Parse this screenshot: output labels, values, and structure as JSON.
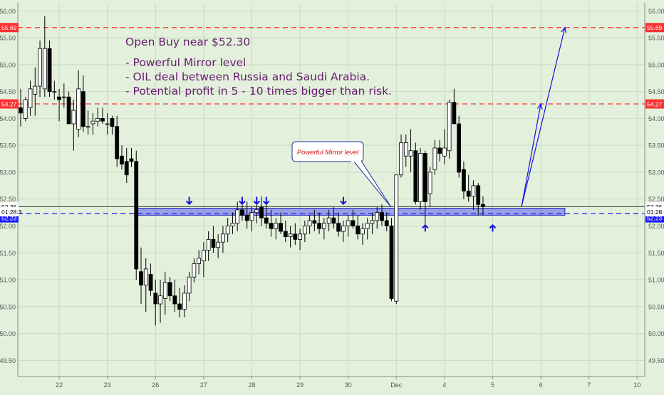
{
  "chart_data": {
    "type": "candlestick",
    "symbol": "",
    "ylim": [
      49.2,
      56.15
    ],
    "price_ticks": [
      49.5,
      50.0,
      50.5,
      51.0,
      51.5,
      52.0,
      52.5,
      53.0,
      53.5,
      54.0,
      54.5,
      55.0,
      55.5,
      56.0
    ],
    "x_tick_labels": [
      {
        "i": 8,
        "label": "22"
      },
      {
        "i": 18,
        "label": "23"
      },
      {
        "i": 28,
        "label": "26"
      },
      {
        "i": 38,
        "label": "27"
      },
      {
        "i": 48,
        "label": "28"
      },
      {
        "i": 58,
        "label": "29"
      },
      {
        "i": 68,
        "label": "30"
      },
      {
        "i": 78,
        "label": "Dec"
      },
      {
        "i": 88,
        "label": "4"
      },
      {
        "i": 98,
        "label": "5"
      },
      {
        "i": 108,
        "label": "6"
      },
      {
        "i": 118,
        "label": "7"
      },
      {
        "i": 128,
        "label": "10"
      }
    ],
    "candles": [
      {
        "i": 0,
        "o": 54.2,
        "h": 54.55,
        "l": 53.85,
        "c": 54.1
      },
      {
        "i": 1,
        "o": 54.0,
        "h": 54.4,
        "l": 53.95,
        "c": 54.35
      },
      {
        "i": 2,
        "o": 54.2,
        "h": 54.7,
        "l": 54.05,
        "c": 54.55
      },
      {
        "i": 3,
        "o": 54.45,
        "h": 54.95,
        "l": 54.05,
        "c": 54.6
      },
      {
        "i": 4,
        "o": 54.6,
        "h": 55.45,
        "l": 54.4,
        "c": 55.3
      },
      {
        "i": 5,
        "o": 54.55,
        "h": 55.9,
        "l": 54.4,
        "c": 55.3
      },
      {
        "i": 6,
        "o": 55.3,
        "h": 55.45,
        "l": 54.4,
        "c": 54.5
      },
      {
        "i": 7,
        "o": 54.5,
        "h": 54.7,
        "l": 54.35,
        "c": 54.5
      },
      {
        "i": 8,
        "o": 54.4,
        "h": 54.55,
        "l": 53.95,
        "c": 54.35
      },
      {
        "i": 9,
        "o": 54.4,
        "h": 54.65,
        "l": 54.2,
        "c": 54.4
      },
      {
        "i": 10,
        "o": 54.4,
        "h": 54.5,
        "l": 53.9,
        "c": 53.9
      },
      {
        "i": 11,
        "o": 53.9,
        "h": 54.35,
        "l": 53.4,
        "c": 54.15
      },
      {
        "i": 12,
        "o": 53.8,
        "h": 54.9,
        "l": 53.65,
        "c": 54.55
      },
      {
        "i": 13,
        "o": 54.5,
        "h": 54.8,
        "l": 53.75,
        "c": 53.85
      },
      {
        "i": 14,
        "o": 53.85,
        "h": 54.15,
        "l": 53.7,
        "c": 53.85
      },
      {
        "i": 15,
        "o": 53.9,
        "h": 54.1,
        "l": 53.7,
        "c": 53.95
      },
      {
        "i": 16,
        "o": 53.95,
        "h": 54.2,
        "l": 53.85,
        "c": 54.0
      },
      {
        "i": 17,
        "o": 54.0,
        "h": 54.2,
        "l": 53.9,
        "c": 53.95
      },
      {
        "i": 18,
        "o": 53.9,
        "h": 54.1,
        "l": 53.7,
        "c": 53.9
      },
      {
        "i": 19,
        "o": 54.0,
        "h": 54.05,
        "l": 53.7,
        "c": 53.85
      },
      {
        "i": 20,
        "o": 53.85,
        "h": 54.05,
        "l": 53.1,
        "c": 53.25
      },
      {
        "i": 21,
        "o": 53.3,
        "h": 53.5,
        "l": 53.05,
        "c": 53.15
      },
      {
        "i": 22,
        "o": 53.2,
        "h": 53.45,
        "l": 52.8,
        "c": 52.95
      },
      {
        "i": 23,
        "o": 53.25,
        "h": 53.45,
        "l": 53.1,
        "c": 53.2
      },
      {
        "i": 24,
        "o": 53.2,
        "h": 53.4,
        "l": 51.0,
        "c": 51.2
      },
      {
        "i": 25,
        "o": 51.15,
        "h": 51.6,
        "l": 50.55,
        "c": 50.9
      },
      {
        "i": 26,
        "o": 50.9,
        "h": 51.4,
        "l": 50.4,
        "c": 51.2
      },
      {
        "i": 27,
        "o": 51.1,
        "h": 51.3,
        "l": 50.7,
        "c": 50.8
      },
      {
        "i": 28,
        "o": 50.75,
        "h": 51.0,
        "l": 50.15,
        "c": 50.55
      },
      {
        "i": 29,
        "o": 50.55,
        "h": 51.0,
        "l": 50.2,
        "c": 50.7
      },
      {
        "i": 30,
        "o": 50.65,
        "h": 51.15,
        "l": 50.35,
        "c": 50.95
      },
      {
        "i": 31,
        "o": 50.95,
        "h": 51.05,
        "l": 50.6,
        "c": 50.7
      },
      {
        "i": 32,
        "o": 50.7,
        "h": 51.0,
        "l": 50.4,
        "c": 50.55
      },
      {
        "i": 33,
        "o": 50.55,
        "h": 50.85,
        "l": 50.3,
        "c": 50.45
      },
      {
        "i": 34,
        "o": 50.45,
        "h": 50.9,
        "l": 50.3,
        "c": 50.75
      },
      {
        "i": 35,
        "o": 50.75,
        "h": 51.15,
        "l": 50.6,
        "c": 51.05
      },
      {
        "i": 36,
        "o": 51.05,
        "h": 51.4,
        "l": 50.95,
        "c": 51.3
      },
      {
        "i": 37,
        "o": 51.3,
        "h": 51.55,
        "l": 51.1,
        "c": 51.4
      },
      {
        "i": 38,
        "o": 51.35,
        "h": 51.7,
        "l": 51.05,
        "c": 51.55
      },
      {
        "i": 39,
        "o": 51.55,
        "h": 51.9,
        "l": 51.35,
        "c": 51.75
      },
      {
        "i": 40,
        "o": 51.75,
        "h": 52.0,
        "l": 51.5,
        "c": 51.6
      },
      {
        "i": 41,
        "o": 51.6,
        "h": 51.85,
        "l": 51.4,
        "c": 51.7
      },
      {
        "i": 42,
        "o": 51.7,
        "h": 52.0,
        "l": 51.5,
        "c": 51.85
      },
      {
        "i": 43,
        "o": 51.85,
        "h": 52.15,
        "l": 51.7,
        "c": 52.0
      },
      {
        "i": 44,
        "o": 52.0,
        "h": 52.25,
        "l": 51.85,
        "c": 52.05
      },
      {
        "i": 45,
        "o": 52.05,
        "h": 52.45,
        "l": 51.9,
        "c": 52.3
      },
      {
        "i": 46,
        "o": 52.3,
        "h": 52.5,
        "l": 52.1,
        "c": 52.2
      },
      {
        "i": 47,
        "o": 52.2,
        "h": 52.45,
        "l": 51.95,
        "c": 52.1
      },
      {
        "i": 48,
        "o": 52.1,
        "h": 52.35,
        "l": 51.9,
        "c": 52.25
      },
      {
        "i": 49,
        "o": 52.25,
        "h": 52.5,
        "l": 52.05,
        "c": 52.3
      },
      {
        "i": 50,
        "o": 52.35,
        "h": 52.55,
        "l": 52.0,
        "c": 52.15
      },
      {
        "i": 51,
        "o": 52.15,
        "h": 52.4,
        "l": 51.95,
        "c": 52.05
      },
      {
        "i": 52,
        "o": 52.05,
        "h": 52.3,
        "l": 51.8,
        "c": 51.95
      },
      {
        "i": 53,
        "o": 51.95,
        "h": 52.15,
        "l": 51.75,
        "c": 52.05
      },
      {
        "i": 54,
        "o": 52.05,
        "h": 52.25,
        "l": 51.85,
        "c": 51.9
      },
      {
        "i": 55,
        "o": 51.9,
        "h": 52.1,
        "l": 51.7,
        "c": 51.8
      },
      {
        "i": 56,
        "o": 51.8,
        "h": 52.0,
        "l": 51.6,
        "c": 51.85
      },
      {
        "i": 57,
        "o": 51.85,
        "h": 52.05,
        "l": 51.65,
        "c": 51.75
      },
      {
        "i": 58,
        "o": 51.75,
        "h": 51.95,
        "l": 51.55,
        "c": 51.85
      },
      {
        "i": 59,
        "o": 51.85,
        "h": 52.1,
        "l": 51.7,
        "c": 52.0
      },
      {
        "i": 60,
        "o": 52.0,
        "h": 52.2,
        "l": 51.85,
        "c": 52.1
      },
      {
        "i": 61,
        "o": 52.1,
        "h": 52.3,
        "l": 51.9,
        "c": 52.05
      },
      {
        "i": 62,
        "o": 52.05,
        "h": 52.25,
        "l": 51.85,
        "c": 51.95
      },
      {
        "i": 63,
        "o": 51.95,
        "h": 52.15,
        "l": 51.75,
        "c": 52.05
      },
      {
        "i": 64,
        "o": 52.05,
        "h": 52.3,
        "l": 51.9,
        "c": 52.15
      },
      {
        "i": 65,
        "o": 52.15,
        "h": 52.35,
        "l": 51.95,
        "c": 52.05
      },
      {
        "i": 66,
        "o": 52.05,
        "h": 52.25,
        "l": 51.8,
        "c": 51.9
      },
      {
        "i": 67,
        "o": 51.9,
        "h": 52.1,
        "l": 51.7,
        "c": 52.0
      },
      {
        "i": 68,
        "o": 52.0,
        "h": 52.2,
        "l": 51.8,
        "c": 52.1
      },
      {
        "i": 69,
        "o": 52.1,
        "h": 52.3,
        "l": 51.95,
        "c": 52.0
      },
      {
        "i": 70,
        "o": 52.0,
        "h": 52.2,
        "l": 51.75,
        "c": 51.85
      },
      {
        "i": 71,
        "o": 51.85,
        "h": 52.05,
        "l": 51.65,
        "c": 51.95
      },
      {
        "i": 72,
        "o": 51.95,
        "h": 52.15,
        "l": 51.75,
        "c": 52.05
      },
      {
        "i": 73,
        "o": 52.05,
        "h": 52.25,
        "l": 51.85,
        "c": 52.1
      },
      {
        "i": 74,
        "o": 52.1,
        "h": 52.35,
        "l": 51.95,
        "c": 52.25
      },
      {
        "i": 75,
        "o": 52.25,
        "h": 52.4,
        "l": 52.0,
        "c": 52.1
      },
      {
        "i": 76,
        "o": 52.1,
        "h": 52.25,
        "l": 51.9,
        "c": 52.0
      },
      {
        "i": 77,
        "o": 52.0,
        "h": 52.15,
        "l": 50.6,
        "c": 50.65
      },
      {
        "i": 78,
        "o": 50.6,
        "h": 52.95,
        "l": 50.55,
        "c": 52.95
      },
      {
        "i": 79,
        "o": 52.95,
        "h": 53.7,
        "l": 52.9,
        "c": 53.55
      },
      {
        "i": 80,
        "o": 53.3,
        "h": 53.7,
        "l": 53.1,
        "c": 53.55
      },
      {
        "i": 81,
        "o": 53.3,
        "h": 53.8,
        "l": 53.0,
        "c": 53.4
      },
      {
        "i": 82,
        "o": 53.4,
        "h": 53.55,
        "l": 52.4,
        "c": 52.45
      },
      {
        "i": 83,
        "o": 52.45,
        "h": 53.45,
        "l": 52.3,
        "c": 53.35
      },
      {
        "i": 84,
        "o": 53.35,
        "h": 53.4,
        "l": 51.95,
        "c": 52.45
      },
      {
        "i": 85,
        "o": 52.6,
        "h": 53.1,
        "l": 52.35,
        "c": 53.0
      },
      {
        "i": 86,
        "o": 53.05,
        "h": 53.6,
        "l": 52.95,
        "c": 53.45
      },
      {
        "i": 87,
        "o": 53.45,
        "h": 53.6,
        "l": 53.2,
        "c": 53.35
      },
      {
        "i": 88,
        "o": 53.3,
        "h": 53.8,
        "l": 53.15,
        "c": 53.45
      },
      {
        "i": 89,
        "o": 53.4,
        "h": 54.35,
        "l": 53.25,
        "c": 54.3
      },
      {
        "i": 90,
        "o": 54.3,
        "h": 54.55,
        "l": 53.9,
        "c": 53.9
      },
      {
        "i": 91,
        "o": 53.9,
        "h": 54.05,
        "l": 52.9,
        "c": 53.0
      },
      {
        "i": 92,
        "o": 53.05,
        "h": 53.2,
        "l": 52.5,
        "c": 52.65
      },
      {
        "i": 93,
        "o": 52.65,
        "h": 52.95,
        "l": 52.45,
        "c": 52.55
      },
      {
        "i": 94,
        "o": 52.55,
        "h": 52.85,
        "l": 52.3,
        "c": 52.75
      },
      {
        "i": 95,
        "o": 52.75,
        "h": 52.8,
        "l": 52.2,
        "c": 52.4
      },
      {
        "i": 96,
        "o": 52.4,
        "h": 52.55,
        "l": 52.2,
        "c": 52.36
      }
    ],
    "h_levels": [
      {
        "price": 55.69,
        "label": "55.69",
        "color": "#ff3030",
        "style": "dashed"
      },
      {
        "price": 54.27,
        "label": "54.27",
        "color": "#ff3030",
        "style": "dashed"
      },
      {
        "price": 52.23,
        "label": "52.23",
        "color": "#1a1aff",
        "style": "dashed"
      },
      {
        "price": 52.36,
        "label": "52.36",
        "color": "#222222",
        "style": "solid"
      }
    ],
    "mirror_zone": {
      "top": 52.33,
      "bottom": 52.2,
      "from_i": 24,
      "to_i": 113,
      "color": "#5050f0"
    },
    "down_arrows_at": [
      35,
      46,
      49,
      51,
      67
    ],
    "up_arrows_at": [
      84,
      98
    ],
    "projection": [
      {
        "from_i": 104,
        "from_price": 52.36,
        "to_i": 108,
        "to_price": 54.27
      },
      {
        "from_i": 104,
        "from_price": 52.36,
        "to_i": 113,
        "to_price": 55.69
      }
    ],
    "current_price_label": "52.36",
    "countdown_label": "01:28:3",
    "colors": {
      "background": "#e3f1dc",
      "bull": "#ffffff",
      "bear": "#000000",
      "grid": "#c9d9c2",
      "title_text": "#6a1a72",
      "callout_text": "#d81010",
      "arrow": "#1010e0"
    }
  },
  "annotation": {
    "title": "Open Buy near $52.30",
    "bullets": [
      "- Powerful Mirror level",
      "- OIL deal between Russia and Saudi Arabia.",
      "- Potential profit in 5 - 10 times bigger than risk."
    ]
  },
  "callout": {
    "label": "Powerful Mirror level"
  }
}
